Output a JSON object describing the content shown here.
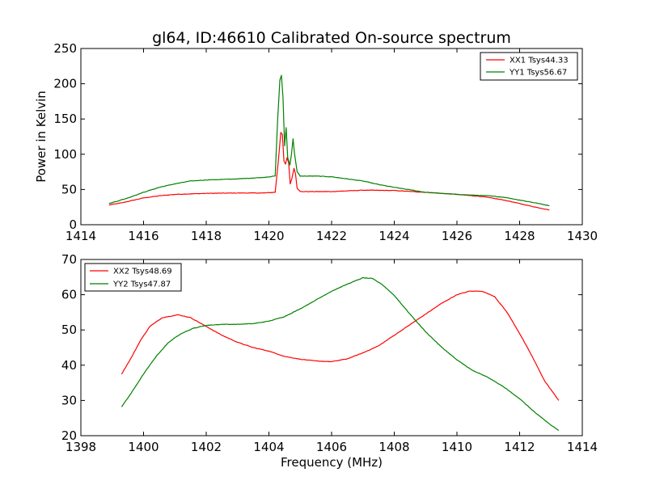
{
  "figure": {
    "title": "gl64, ID:46610 Calibrated On-source spectrum"
  },
  "chart_data": [
    {
      "type": "line",
      "title": "gl64, ID:46610 Calibrated On-source spectrum",
      "xlabel": "",
      "ylabel": "Power in Kelvin",
      "xlim": [
        1414,
        1430
      ],
      "ylim": [
        0,
        250
      ],
      "xticks": [
        1414,
        1416,
        1418,
        1420,
        1422,
        1424,
        1426,
        1428,
        1430
      ],
      "yticks": [
        0,
        50,
        100,
        150,
        200,
        250
      ],
      "grid": false,
      "legend": "top-right",
      "series": [
        {
          "name": "XX1 Tsys44.33",
          "color": "#ff0000",
          "points": [
            [
              1414.9,
              28
            ],
            [
              1415.3,
              31
            ],
            [
              1415.7,
              35
            ],
            [
              1416.0,
              38
            ],
            [
              1416.5,
              41
            ],
            [
              1417.0,
              43
            ],
            [
              1418.0,
              44.5
            ],
            [
              1419.0,
              45
            ],
            [
              1419.8,
              45
            ],
            [
              1420.2,
              46
            ],
            [
              1420.3,
              90
            ],
            [
              1420.38,
              131
            ],
            [
              1420.43,
              128
            ],
            [
              1420.48,
              90
            ],
            [
              1420.53,
              86
            ],
            [
              1420.58,
              95
            ],
            [
              1420.63,
              88
            ],
            [
              1420.68,
              58
            ],
            [
              1420.73,
              65
            ],
            [
              1420.8,
              80
            ],
            [
              1420.85,
              72
            ],
            [
              1420.9,
              52
            ],
            [
              1421.0,
              47
            ],
            [
              1422.0,
              47
            ],
            [
              1423.0,
              49
            ],
            [
              1424.0,
              48.5
            ],
            [
              1425.0,
              46
            ],
            [
              1426.0,
              43
            ],
            [
              1426.8,
              40
            ],
            [
              1427.5,
              35
            ],
            [
              1428.0,
              30
            ],
            [
              1428.5,
              25
            ],
            [
              1428.95,
              21
            ]
          ]
        },
        {
          "name": "YY1 Tsys56.67",
          "color": "#008000",
          "points": [
            [
              1414.9,
              30
            ],
            [
              1415.5,
              38
            ],
            [
              1416.0,
              46
            ],
            [
              1416.5,
              53
            ],
            [
              1417.0,
              58
            ],
            [
              1417.5,
              62
            ],
            [
              1418.0,
              63.5
            ],
            [
              1419.0,
              65
            ],
            [
              1419.8,
              67
            ],
            [
              1420.2,
              69
            ],
            [
              1420.28,
              150
            ],
            [
              1420.35,
              205
            ],
            [
              1420.4,
              212
            ],
            [
              1420.45,
              180
            ],
            [
              1420.5,
              112
            ],
            [
              1420.55,
              138
            ],
            [
              1420.6,
              95
            ],
            [
              1420.67,
              85
            ],
            [
              1420.72,
              100
            ],
            [
              1420.77,
              122
            ],
            [
              1420.82,
              100
            ],
            [
              1420.9,
              75
            ],
            [
              1421.0,
              69
            ],
            [
              1421.5,
              69
            ],
            [
              1422.0,
              68
            ],
            [
              1423.0,
              62
            ],
            [
              1423.5,
              57
            ],
            [
              1424.0,
              53
            ],
            [
              1425.0,
              46
            ],
            [
              1426.0,
              43
            ],
            [
              1427.0,
              41
            ],
            [
              1427.5,
              39
            ],
            [
              1428.0,
              35
            ],
            [
              1428.5,
              31
            ],
            [
              1428.95,
              27
            ]
          ]
        }
      ]
    },
    {
      "type": "line",
      "title": "",
      "xlabel": "Frequency (MHz)",
      "ylabel": "",
      "xlim": [
        1398,
        1414
      ],
      "ylim": [
        20,
        70
      ],
      "xticks": [
        1398,
        1400,
        1402,
        1404,
        1406,
        1408,
        1410,
        1412,
        1414
      ],
      "yticks": [
        20,
        30,
        40,
        50,
        60,
        70
      ],
      "grid": false,
      "legend": "top-left",
      "series": [
        {
          "name": "XX2 Tsys48.69",
          "color": "#ff0000",
          "points": [
            [
              1399.3,
              37.5
            ],
            [
              1399.6,
              42
            ],
            [
              1399.9,
              47
            ],
            [
              1400.2,
              51
            ],
            [
              1400.6,
              53.5
            ],
            [
              1401.1,
              54.3
            ],
            [
              1401.5,
              53.5
            ],
            [
              1402.0,
              51
            ],
            [
              1402.5,
              48.5
            ],
            [
              1403.0,
              46.5
            ],
            [
              1403.5,
              45
            ],
            [
              1404.0,
              44
            ],
            [
              1404.5,
              42.5
            ],
            [
              1405.0,
              41.7
            ],
            [
              1405.5,
              41.2
            ],
            [
              1406.0,
              41
            ],
            [
              1406.5,
              41.8
            ],
            [
              1407.0,
              43.5
            ],
            [
              1407.5,
              45.5
            ],
            [
              1408.0,
              48.5
            ],
            [
              1408.5,
              51.5
            ],
            [
              1409.0,
              54.5
            ],
            [
              1409.5,
              57.5
            ],
            [
              1410.0,
              60
            ],
            [
              1410.4,
              61
            ],
            [
              1410.8,
              61
            ],
            [
              1411.2,
              59.5
            ],
            [
              1411.6,
              55
            ],
            [
              1412.0,
              49
            ],
            [
              1412.4,
              42.5
            ],
            [
              1412.8,
              35.5
            ],
            [
              1413.25,
              30
            ]
          ]
        },
        {
          "name": "YY2 Tsys47.87",
          "color": "#008000",
          "points": [
            [
              1399.3,
              28.2
            ],
            [
              1399.6,
              32
            ],
            [
              1400.0,
              37.5
            ],
            [
              1400.4,
              42.5
            ],
            [
              1400.8,
              46.5
            ],
            [
              1401.2,
              49
            ],
            [
              1401.6,
              50.5
            ],
            [
              1402.0,
              51.3
            ],
            [
              1402.5,
              51.6
            ],
            [
              1403.0,
              51.6
            ],
            [
              1403.5,
              51.8
            ],
            [
              1404.0,
              52.5
            ],
            [
              1404.5,
              53.8
            ],
            [
              1405.0,
              56
            ],
            [
              1405.5,
              58.5
            ],
            [
              1406.0,
              61
            ],
            [
              1406.5,
              63
            ],
            [
              1407.0,
              64.8
            ],
            [
              1407.3,
              64.6
            ],
            [
              1407.6,
              63
            ],
            [
              1408.0,
              59.8
            ],
            [
              1408.5,
              54.5
            ],
            [
              1409.0,
              49.5
            ],
            [
              1409.5,
              45.2
            ],
            [
              1410.0,
              41.5
            ],
            [
              1410.5,
              38.5
            ],
            [
              1411.0,
              36.5
            ],
            [
              1411.5,
              33.8
            ],
            [
              1412.0,
              30.5
            ],
            [
              1412.5,
              26.5
            ],
            [
              1413.0,
              23
            ],
            [
              1413.25,
              21.5
            ]
          ]
        }
      ]
    }
  ]
}
